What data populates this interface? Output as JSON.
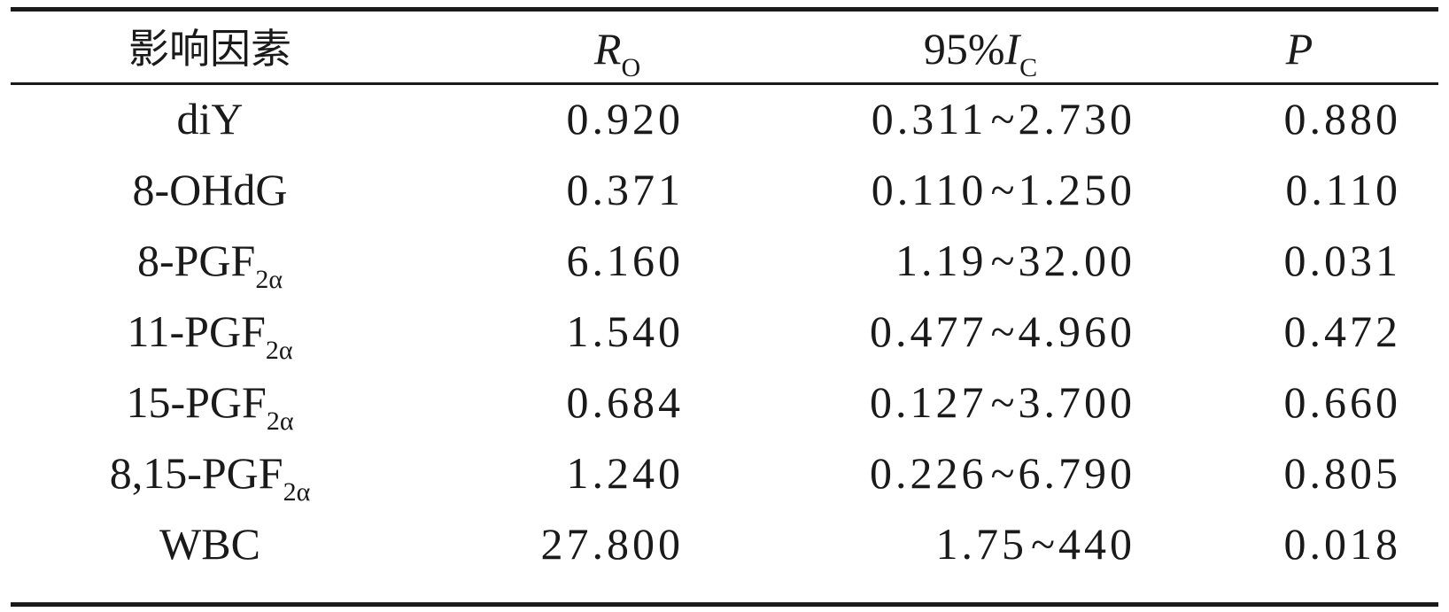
{
  "table": {
    "headers": {
      "factor": "影响因素",
      "or_main": "R",
      "or_sub": "O",
      "ci_prefix": "95%",
      "ci_main": "I",
      "ci_sub": "C",
      "p": "P"
    },
    "rows": [
      {
        "factor": "diY",
        "factor_sub": "",
        "or": "0.920",
        "ci_low": "0.311",
        "ci_sep": "~",
        "ci_high": "2.730",
        "p": "0.880"
      },
      {
        "factor": "8-OHdG",
        "factor_sub": "",
        "or": "0.371",
        "ci_low": "0.110",
        "ci_sep": "~",
        "ci_high": "1.250",
        "p": "0.110"
      },
      {
        "factor": "8-PGF",
        "factor_sub": "2α",
        "or": "6.160",
        "ci_low": "1.19",
        "ci_sep": "~",
        "ci_high": "32.00",
        "p": "0.031"
      },
      {
        "factor": "11-PGF",
        "factor_sub": "2α",
        "or": "1.540",
        "ci_low": "0.477",
        "ci_sep": "~",
        "ci_high": "4.960",
        "p": "0.472"
      },
      {
        "factor": "15-PGF",
        "factor_sub": "2α",
        "or": "0.684",
        "ci_low": "0.127",
        "ci_sep": "~",
        "ci_high": "3.700",
        "p": "0.660"
      },
      {
        "factor": "8,15-PGF",
        "factor_sub": "2α",
        "or": "1.240",
        "ci_low": "0.226",
        "ci_sep": "~",
        "ci_high": "6.790",
        "p": "0.805"
      },
      {
        "factor": "WBC",
        "factor_sub": "",
        "or": "27.800",
        "ci_low": "1.75",
        "ci_sep": "~",
        "ci_high": "440",
        "p": "0.018"
      }
    ]
  }
}
